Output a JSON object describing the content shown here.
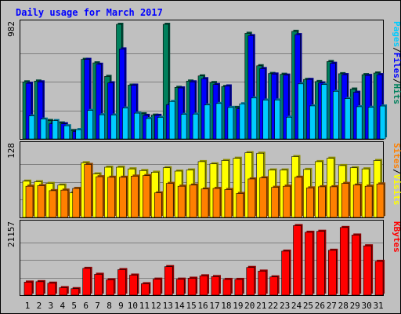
{
  "title": "Daily usage for March 2017",
  "colors": {
    "pages": "#00ccff",
    "files": "#0000ff",
    "hits": "#00805c",
    "sites": "#ff8000",
    "visits": "#ffff00",
    "kbytes": "#ff0000",
    "weekend_label": "#00805c",
    "weekday_label": "#000000"
  },
  "chart_data": [
    {
      "type": "bar",
      "panel": "hits-files-pages",
      "scale_label": "982",
      "scale_max": 982,
      "legend": [
        {
          "label": "Pages",
          "color": "#00ccff"
        },
        {
          "label": "/",
          "color": "#000000"
        },
        {
          "label": "Files",
          "color": "#0000ff"
        },
        {
          "label": "/",
          "color": "#000000"
        },
        {
          "label": "Hits",
          "color": "#00805c"
        }
      ],
      "categories": [
        "1",
        "2",
        "3",
        "4",
        "5",
        "6",
        "7",
        "8",
        "9",
        "10",
        "11",
        "12",
        "13",
        "14",
        "15",
        "16",
        "17",
        "18",
        "19",
        "20",
        "21",
        "22",
        "23",
        "24",
        "25",
        "26",
        "27",
        "28",
        "29",
        "30",
        "31"
      ],
      "series": [
        {
          "name": "Hits",
          "color": "#00805c",
          "values": [
            489,
            496,
            158,
            137,
            72,
            682,
            652,
            536,
            982,
            461,
            216,
            204,
            982,
            442,
            496,
            540,
            483,
            449,
            270,
            905,
            627,
            561,
            554,
            922,
            510,
            492,
            663,
            559,
            427,
            551,
            565
          ]
        },
        {
          "name": "Files",
          "color": "#0000ff",
          "values": [
            477,
            489,
            130,
            130,
            64,
            682,
            640,
            481,
            771,
            461,
            202,
            202,
            293,
            437,
            489,
            516,
            466,
            454,
            259,
            885,
            603,
            556,
            547,
            894,
            510,
            480,
            648,
            551,
            400,
            544,
            551
          ]
        },
        {
          "name": "Pages",
          "color": "#00ccff",
          "values": [
            197,
            170,
            157,
            113,
            80,
            244,
            207,
            205,
            265,
            221,
            175,
            185,
            321,
            211,
            213,
            291,
            304,
            270,
            301,
            351,
            333,
            334,
            186,
            472,
            283,
            466,
            408,
            346,
            276,
            271,
            282
          ]
        }
      ]
    },
    {
      "type": "bar",
      "panel": "visits-sites",
      "scale_label": "128",
      "scale_max": 128,
      "legend": [
        {
          "label": "Sites",
          "color": "#ff8000"
        },
        {
          "label": "/",
          "color": "#000000"
        },
        {
          "label": "Visits",
          "color": "#ffff00"
        }
      ],
      "categories": [
        "1",
        "2",
        "3",
        "4",
        "5",
        "6",
        "7",
        "8",
        "9",
        "10",
        "11",
        "12",
        "13",
        "14",
        "15",
        "16",
        "17",
        "18",
        "19",
        "20",
        "21",
        "22",
        "23",
        "24",
        "25",
        "26",
        "27",
        "28",
        "29",
        "30",
        "31"
      ],
      "series": [
        {
          "name": "Visits",
          "color": "#ffff00",
          "values": [
            65,
            64,
            61,
            58,
            44,
            98,
            78,
            90,
            90,
            87,
            84,
            81,
            89,
            83,
            85,
            100,
            96,
            102,
            106,
            116,
            115,
            85,
            85,
            109,
            86,
            100,
            106,
            93,
            89,
            87,
            102
          ]
        },
        {
          "name": "Sites",
          "color": "#ff8000",
          "values": [
            56,
            57,
            48,
            49,
            52,
            95,
            73,
            72,
            72,
            74,
            75,
            44,
            61,
            56,
            58,
            51,
            52,
            50,
            43,
            69,
            71,
            54,
            56,
            72,
            53,
            55,
            55,
            61,
            58,
            56,
            60
          ]
        }
      ]
    },
    {
      "type": "bar",
      "panel": "kbytes",
      "scale_label": "21157",
      "scale_max": 21157,
      "legend": [
        {
          "label": "KBytes",
          "color": "#ff0000"
        }
      ],
      "categories": [
        "1",
        "2",
        "3",
        "4",
        "5",
        "6",
        "7",
        "8",
        "9",
        "10",
        "11",
        "12",
        "13",
        "14",
        "15",
        "16",
        "17",
        "18",
        "19",
        "20",
        "21",
        "22",
        "23",
        "24",
        "25",
        "26",
        "27",
        "28",
        "29",
        "30",
        "31"
      ],
      "series": [
        {
          "name": "KBytes",
          "color": "#ff0000",
          "values": [
            3909,
            4034,
            3584,
            2237,
            1936,
            8022,
            6246,
            4593,
            7640,
            5996,
            3421,
            4789,
            8538,
            4787,
            5063,
            5786,
            5556,
            4718,
            4718,
            8294,
            7197,
            5466,
            13183,
            20825,
            18830,
            19120,
            13440,
            20260,
            17998,
            14770,
            10130
          ]
        }
      ]
    }
  ],
  "weekend_days": [
    "4",
    "5",
    "11",
    "12",
    "18",
    "19",
    "25",
    "26"
  ]
}
